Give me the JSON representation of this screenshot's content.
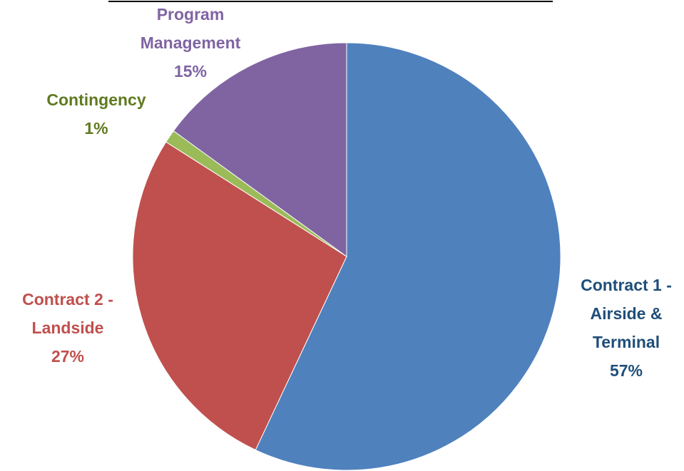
{
  "chart_data": {
    "type": "pie",
    "categories": [
      "Contract 1 - Airside & Terminal",
      "Contract 2 - Landside",
      "Contingency",
      "Program Management"
    ],
    "values": [
      57,
      27,
      1,
      15
    ],
    "value_labels": [
      "57%",
      "27%",
      "1%",
      "15%"
    ],
    "colors": [
      "#4f81bd",
      "#c0504d",
      "#9bbb59",
      "#8064a2"
    ],
    "label_colors": [
      "#1f4e79",
      "#c0504d",
      "#5f7a1f",
      "#8064a2"
    ]
  }
}
